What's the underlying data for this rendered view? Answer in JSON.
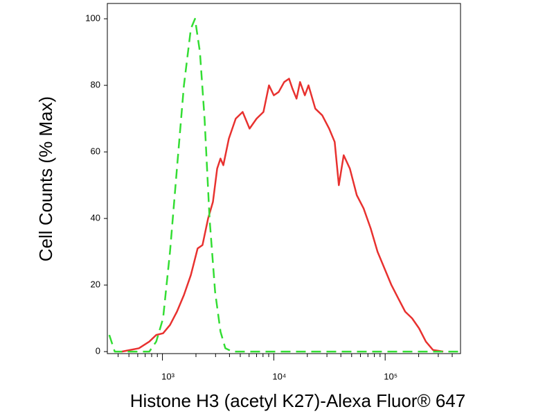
{
  "chart_data": {
    "type": "line",
    "x_label": "Histone H3 (acetyl K27)-Alexa Fluor® 647",
    "y_label": "Cell Counts (% Max)",
    "x_scale": "log",
    "xlim": [
      320,
      475000
    ],
    "ylim": [
      -0.6,
      104.6
    ],
    "xticks": [
      {
        "value": 1000,
        "label": "10³"
      },
      {
        "value": 10000,
        "label": "10⁴"
      },
      {
        "value": 100000,
        "label": "10⁵"
      }
    ],
    "xminor_ticks": [
      400,
      500,
      600,
      700,
      800,
      900,
      2000,
      3000,
      4000,
      5000,
      6000,
      7000,
      8000,
      9000,
      20000,
      30000,
      40000,
      50000,
      60000,
      70000,
      80000,
      90000,
      200000,
      300000,
      400000
    ],
    "yticks": [
      0,
      20,
      40,
      60,
      80,
      100
    ],
    "grid": false,
    "series": [
      {
        "color": "#e8312f",
        "dash": false,
        "x": [
          431,
          615,
          762,
          880,
          1014,
          1170,
          1350,
          1560,
          1800,
          2070,
          2290,
          2570,
          2840,
          3100,
          3320,
          3520,
          3950,
          4550,
          5250,
          6060,
          7000,
          8070,
          9050,
          10000,
          11050,
          12400,
          13700,
          14700,
          16000,
          17200,
          19000,
          20500,
          23600,
          27200,
          31400,
          35200,
          38400,
          42400,
          48200,
          55600,
          64100,
          74100,
          85500,
          98600,
          113700,
          131200,
          151400,
          174600,
          201400,
          232300,
          268500,
          332600
        ],
        "values": [
          0,
          1,
          3,
          5,
          5.5,
          8,
          12,
          17,
          23,
          31,
          32,
          40,
          45,
          55,
          58,
          56,
          64,
          70,
          72,
          67,
          70,
          72,
          80,
          77,
          78,
          81,
          82,
          79,
          76,
          81,
          77,
          80,
          73,
          71,
          67,
          63,
          50,
          59,
          55,
          47,
          43,
          37,
          30,
          25,
          20,
          16,
          12,
          10,
          7,
          3,
          0.5,
          0
        ]
      },
      {
        "color": "#33dd33",
        "dash": true,
        "x": [
          333,
          373,
          762,
          880,
          1014,
          1170,
          1350,
          1560,
          1800,
          1960,
          2170,
          2390,
          2650,
          2970,
          3320,
          3670,
          4240,
          470000
        ],
        "values": [
          5,
          0,
          0,
          3,
          10,
          30,
          55,
          80,
          97,
          100,
          90,
          70,
          40,
          18,
          6,
          1,
          0,
          0
        ]
      }
    ]
  }
}
